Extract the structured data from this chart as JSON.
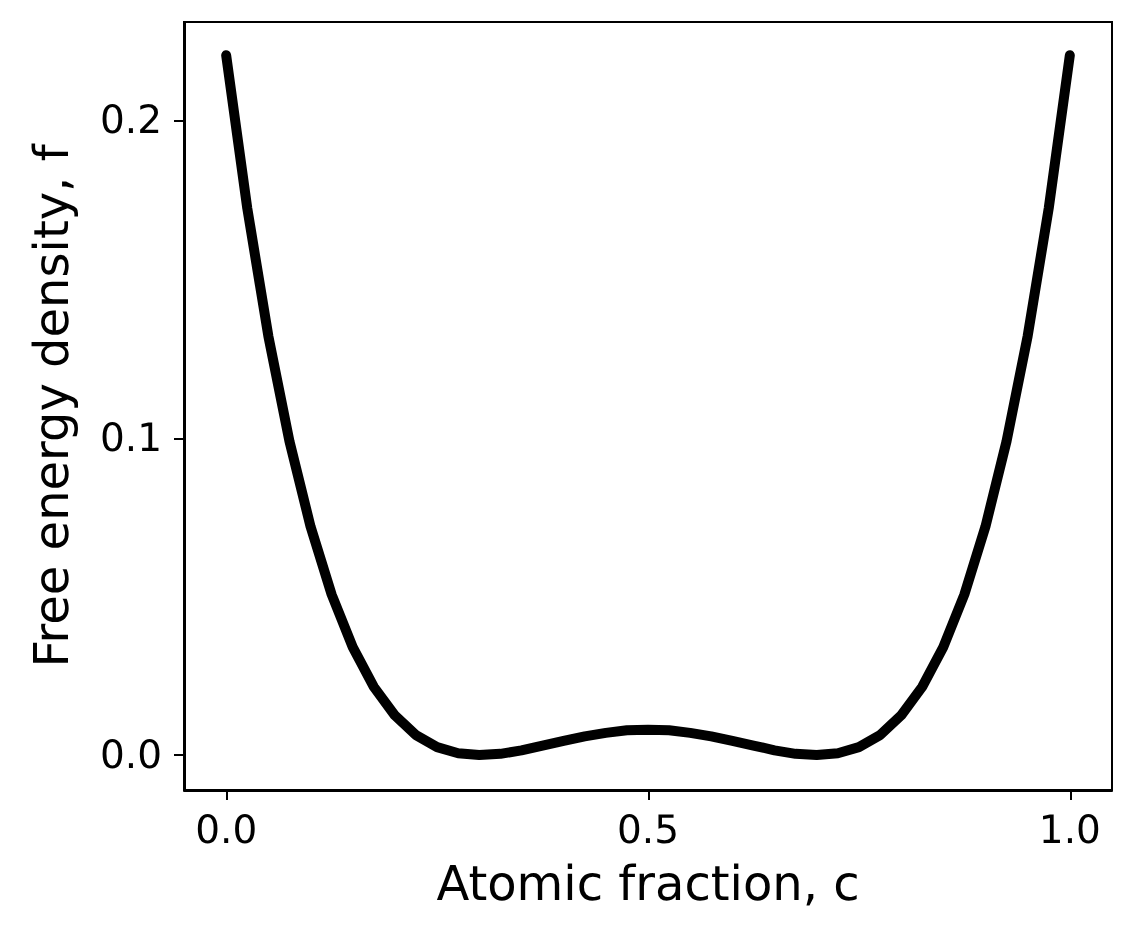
{
  "chart_data": {
    "type": "line",
    "xlabel": "Atomic fraction, c",
    "ylabel": "Free energy density, f",
    "x": [
      0,
      0.025,
      0.05,
      0.075,
      0.1,
      0.125,
      0.15,
      0.175,
      0.2,
      0.225,
      0.25,
      0.275,
      0.3,
      0.325,
      0.35,
      0.375,
      0.4,
      0.425,
      0.45,
      0.475,
      0.5,
      0.525,
      0.55,
      0.575,
      0.6,
      0.625,
      0.65,
      0.675,
      0.7,
      0.725,
      0.75,
      0.775,
      0.8,
      0.825,
      0.85,
      0.875,
      0.9,
      0.925,
      0.95,
      0.975,
      1
    ],
    "series": [
      {
        "color": "#000000",
        "values": [
          0.2205,
          0.1723,
          0.132,
          0.0989,
          0.072,
          0.0506,
          0.034,
          0.0215,
          0.0125,
          0.0063,
          0.0025,
          0.0006,
          0,
          0.0004,
          0.0015,
          0.003,
          0.0045,
          0.0059,
          0.007,
          0.0078,
          0.008,
          0.0078,
          0.007,
          0.0059,
          0.0045,
          0.003,
          0.0015,
          0.0004,
          0,
          0.0006,
          0.0025,
          0.0063,
          0.0125,
          0.0215,
          0.034,
          0.0506,
          0.072,
          0.0989,
          0.132,
          0.1723,
          0.2205
        ]
      }
    ],
    "xlim": [
      -0.05,
      1.05
    ],
    "ylim": [
      -0.011,
      0.231
    ],
    "xticks": [
      {
        "value": 0,
        "label": "0.0"
      },
      {
        "value": 0.5,
        "label": "0.5"
      },
      {
        "value": 1,
        "label": "1.0"
      }
    ],
    "yticks": [
      {
        "value": 0,
        "label": "0.0"
      },
      {
        "value": 0.1,
        "label": "0.1"
      },
      {
        "value": 0.2,
        "label": "0.2"
      }
    ],
    "marker": "none",
    "line_style": "solid"
  }
}
